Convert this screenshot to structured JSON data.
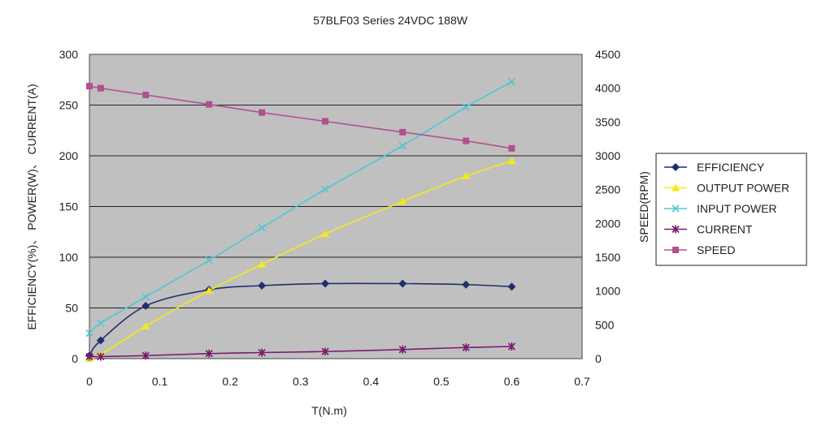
{
  "chart_data": {
    "type": "line",
    "title": "57BLF03 Series 24VDC 188W",
    "xlabel": "T(N.m)",
    "ylabel": "EFFICIENCY(%)、 POWER(W)、 CURRENT(A)",
    "y2label": "SPEED(RPM)",
    "xlim": [
      0,
      0.7
    ],
    "ylim": [
      0,
      300
    ],
    "y2lim": [
      0,
      4500
    ],
    "x_ticks": [
      "0",
      "0.1",
      "0.2",
      "0.3",
      "0.4",
      "0.5",
      "0.6",
      "0.7"
    ],
    "y_ticks": [
      "0",
      "50",
      "100",
      "150",
      "200",
      "250",
      "300"
    ],
    "y2_ticks": [
      "0",
      "500",
      "1000",
      "1500",
      "2000",
      "2500",
      "3000",
      "3500",
      "4000",
      "4500"
    ],
    "grid": "horizontal",
    "legend_position": "right",
    "series": [
      {
        "name": "EFFICIENCY",
        "axis": "left",
        "color": "#1f2f6e",
        "marker": "diamond",
        "x": [
          0.0,
          0.016,
          0.08,
          0.17,
          0.245,
          0.335,
          0.445,
          0.535,
          0.6
        ],
        "y": [
          3,
          18,
          52,
          68,
          72,
          74,
          74,
          73,
          71
        ]
      },
      {
        "name": "OUTPUT POWER",
        "axis": "left",
        "color": "#f2ea1a",
        "marker": "triangle",
        "x": [
          0.0,
          0.016,
          0.08,
          0.17,
          0.245,
          0.335,
          0.445,
          0.535,
          0.6
        ],
        "y": [
          0,
          4,
          32,
          67,
          93,
          123,
          155,
          180,
          195
        ]
      },
      {
        "name": "INPUT POWER",
        "axis": "left",
        "color": "#4fc7d4",
        "marker": "x",
        "x": [
          0.0,
          0.016,
          0.08,
          0.17,
          0.245,
          0.335,
          0.445,
          0.535,
          0.6
        ],
        "y": [
          25,
          35,
          61,
          97,
          129,
          167,
          210,
          248,
          273
        ]
      },
      {
        "name": "CURRENT",
        "axis": "left",
        "color": "#7a1a6e",
        "marker": "star",
        "x": [
          0.0,
          0.016,
          0.08,
          0.17,
          0.245,
          0.335,
          0.445,
          0.535,
          0.6
        ],
        "y": [
          2,
          2,
          3,
          5,
          6,
          7,
          9,
          11,
          12
        ]
      },
      {
        "name": "SPEED",
        "axis": "right",
        "color": "#b0508f",
        "marker": "square",
        "x": [
          0.0,
          0.016,
          0.08,
          0.17,
          0.245,
          0.335,
          0.445,
          0.535,
          0.6
        ],
        "y": [
          4030,
          4000,
          3900,
          3760,
          3640,
          3510,
          3350,
          3220,
          3110
        ]
      }
    ]
  }
}
